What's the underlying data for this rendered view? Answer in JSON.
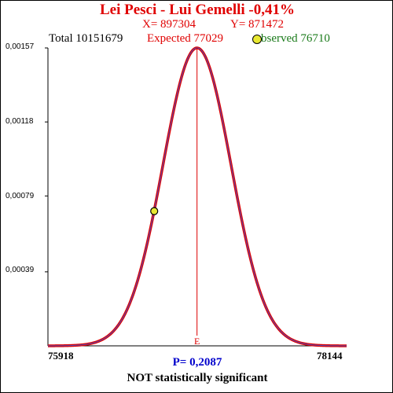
{
  "header": {
    "title": "Lei Pesci - Lui Gemelli  -0,41%",
    "x_text": "X= 897304",
    "y_text": "Y= 871472",
    "total_text": "Total  10151679",
    "expected_text": "Expected  77029",
    "observed_text": "bserved  76710"
  },
  "footer": {
    "p_text": "P= 0,2087",
    "verdict": "NOT statistically significant"
  },
  "colors": {
    "curve": "#dd0000",
    "curve_inner": "#5050c0",
    "expected_line": "#dd0000",
    "marker": "#e8e832"
  },
  "chart_data": {
    "type": "line",
    "title": "Lei Pesci - Lui Gemelli  -0,41%",
    "xlim": [
      75918,
      78144
    ],
    "ylim": [
      0,
      0.00157
    ],
    "x_tick_labels": [
      "75918",
      "78144"
    ],
    "y_tick_labels": [
      "0,00157",
      "0,00118",
      "0,00079",
      "0,00039"
    ],
    "y_tick_values": [
      0.00157,
      0.00118,
      0.00079,
      0.00039
    ],
    "grid": false,
    "curve": {
      "distribution": "normal",
      "mean": 77029,
      "peak_density": 0.00157
    },
    "expected": {
      "x": 77029,
      "label": "E"
    },
    "observed": {
      "x": 76710,
      "y": 0.00071
    }
  }
}
